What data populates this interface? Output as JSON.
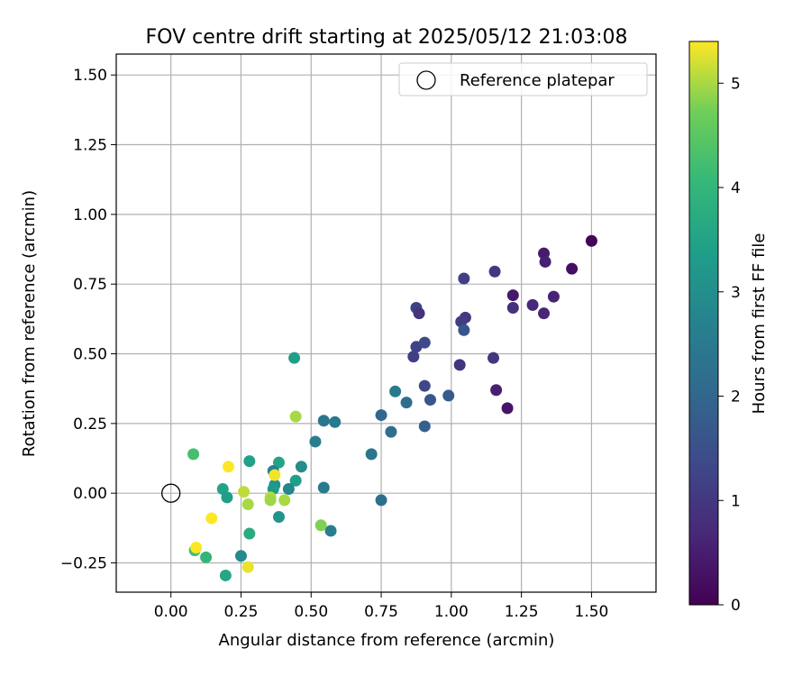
{
  "chart_data": {
    "type": "scatter",
    "title": "FOV centre drift starting at 2025/05/12 21:03:08",
    "xlabel": "Angular distance from reference (arcmin)",
    "ylabel": "Rotation from reference (arcmin)",
    "xlim": [
      -0.195,
      1.73
    ],
    "ylim": [
      -0.355,
      1.575
    ],
    "xticks": [
      "0.00",
      "0.25",
      "0.50",
      "0.75",
      "1.00",
      "1.25",
      "1.50"
    ],
    "yticks": [
      "−0.25",
      "0.00",
      "0.25",
      "0.50",
      "0.75",
      "1.00",
      "1.25",
      "1.50"
    ],
    "grid": true,
    "legend": {
      "label": "Reference platepar",
      "placement": "top-right",
      "marker": "open-circle"
    },
    "reference_point": {
      "x": 0.0,
      "y": 0.0
    },
    "colorbar": {
      "label": "Hours from first FF file",
      "colormap": "viridis",
      "range": [
        0,
        5.4
      ],
      "ticks": [
        "0",
        "1",
        "2",
        "3",
        "4",
        "5"
      ]
    },
    "points": [
      {
        "x": 1.5,
        "y": 0.905,
        "h": 0.05
      },
      {
        "x": 1.43,
        "y": 0.805,
        "h": 0.25
      },
      {
        "x": 1.33,
        "y": 0.86,
        "h": 0.45
      },
      {
        "x": 1.335,
        "y": 0.83,
        "h": 0.55
      },
      {
        "x": 1.365,
        "y": 0.705,
        "h": 0.6
      },
      {
        "x": 1.29,
        "y": 0.675,
        "h": 0.7
      },
      {
        "x": 1.33,
        "y": 0.645,
        "h": 0.65
      },
      {
        "x": 1.22,
        "y": 0.71,
        "h": 0.4
      },
      {
        "x": 1.22,
        "y": 0.665,
        "h": 0.85
      },
      {
        "x": 1.2,
        "y": 0.305,
        "h": 0.35
      },
      {
        "x": 1.16,
        "y": 0.37,
        "h": 0.55
      },
      {
        "x": 1.155,
        "y": 0.795,
        "h": 1.0
      },
      {
        "x": 1.15,
        "y": 0.485,
        "h": 1.0
      },
      {
        "x": 1.045,
        "y": 0.77,
        "h": 1.15
      },
      {
        "x": 1.05,
        "y": 0.63,
        "h": 1.05
      },
      {
        "x": 1.035,
        "y": 0.615,
        "h": 1.1
      },
      {
        "x": 1.045,
        "y": 0.585,
        "h": 1.6
      },
      {
        "x": 1.03,
        "y": 0.46,
        "h": 0.95
      },
      {
        "x": 0.875,
        "y": 0.665,
        "h": 1.2
      },
      {
        "x": 0.885,
        "y": 0.645,
        "h": 0.9
      },
      {
        "x": 0.875,
        "y": 0.525,
        "h": 1.2
      },
      {
        "x": 0.905,
        "y": 0.54,
        "h": 1.4
      },
      {
        "x": 0.865,
        "y": 0.49,
        "h": 1.15
      },
      {
        "x": 0.905,
        "y": 0.385,
        "h": 1.3
      },
      {
        "x": 0.925,
        "y": 0.335,
        "h": 1.65
      },
      {
        "x": 0.99,
        "y": 0.35,
        "h": 1.75
      },
      {
        "x": 0.905,
        "y": 0.24,
        "h": 1.85
      },
      {
        "x": 0.8,
        "y": 0.365,
        "h": 2.5
      },
      {
        "x": 0.84,
        "y": 0.325,
        "h": 2.2
      },
      {
        "x": 0.75,
        "y": 0.28,
        "h": 2.05
      },
      {
        "x": 0.785,
        "y": 0.22,
        "h": 2.2
      },
      {
        "x": 0.715,
        "y": 0.14,
        "h": 2.35
      },
      {
        "x": 0.75,
        "y": -0.025,
        "h": 2.2
      },
      {
        "x": 0.585,
        "y": 0.255,
        "h": 2.5
      },
      {
        "x": 0.545,
        "y": 0.26,
        "h": 2.4
      },
      {
        "x": 0.515,
        "y": 0.185,
        "h": 2.6
      },
      {
        "x": 0.545,
        "y": 0.02,
        "h": 2.5
      },
      {
        "x": 0.57,
        "y": -0.135,
        "h": 2.6
      },
      {
        "x": 0.44,
        "y": 0.485,
        "h": 3.4
      },
      {
        "x": 0.465,
        "y": 0.095,
        "h": 3.0
      },
      {
        "x": 0.445,
        "y": 0.045,
        "h": 3.4
      },
      {
        "x": 0.42,
        "y": 0.015,
        "h": 2.8
      },
      {
        "x": 0.385,
        "y": 0.11,
        "h": 3.55
      },
      {
        "x": 0.365,
        "y": 0.08,
        "h": 2.7
      },
      {
        "x": 0.37,
        "y": 0.03,
        "h": 3.1
      },
      {
        "x": 0.365,
        "y": 0.015,
        "h": 3.3
      },
      {
        "x": 0.385,
        "y": -0.085,
        "h": 3.15
      },
      {
        "x": 0.28,
        "y": 0.115,
        "h": 3.45
      },
      {
        "x": 0.28,
        "y": -0.145,
        "h": 3.7
      },
      {
        "x": 0.25,
        "y": -0.225,
        "h": 2.9
      },
      {
        "x": 0.195,
        "y": -0.295,
        "h": 3.6
      },
      {
        "x": 0.185,
        "y": 0.015,
        "h": 3.5
      },
      {
        "x": 0.2,
        "y": -0.015,
        "h": 3.4
      },
      {
        "x": 0.08,
        "y": 0.14,
        "h": 4.25
      },
      {
        "x": 0.085,
        "y": -0.205,
        "h": 4.25
      },
      {
        "x": 0.125,
        "y": -0.23,
        "h": 4.0
      },
      {
        "x": 0.09,
        "y": -0.195,
        "h": 5.4
      },
      {
        "x": 0.145,
        "y": -0.09,
        "h": 5.4
      },
      {
        "x": 0.205,
        "y": 0.095,
        "h": 5.4
      },
      {
        "x": 0.26,
        "y": 0.005,
        "h": 5.1
      },
      {
        "x": 0.275,
        "y": -0.04,
        "h": 5.0
      },
      {
        "x": 0.275,
        "y": -0.265,
        "h": 5.3
      },
      {
        "x": 0.355,
        "y": -0.015,
        "h": 5.1
      },
      {
        "x": 0.355,
        "y": -0.025,
        "h": 4.95
      },
      {
        "x": 0.37,
        "y": 0.065,
        "h": 5.35
      },
      {
        "x": 0.405,
        "y": -0.025,
        "h": 5.0
      },
      {
        "x": 0.445,
        "y": 0.275,
        "h": 5.0
      },
      {
        "x": 0.535,
        "y": -0.115,
        "h": 4.8
      }
    ]
  }
}
